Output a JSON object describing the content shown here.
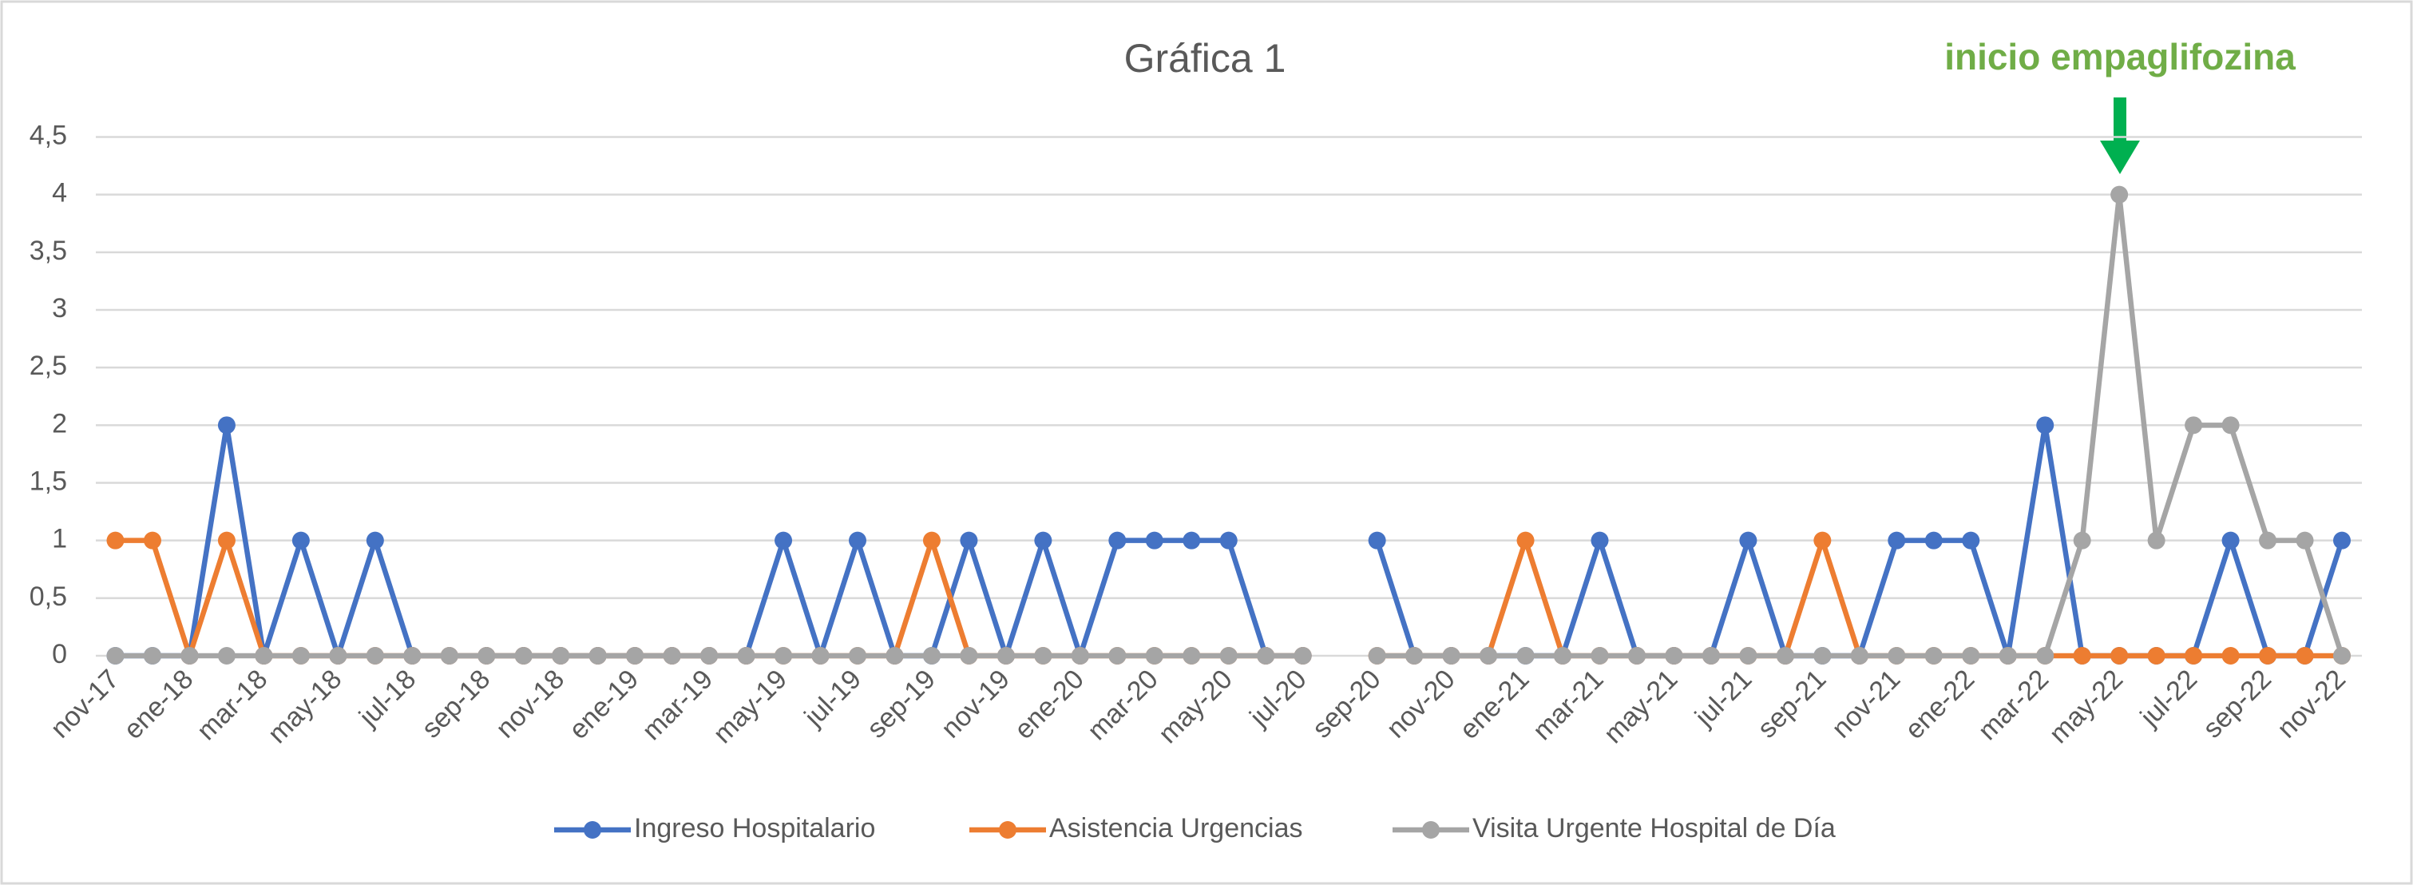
{
  "chart_data": {
    "type": "line",
    "title": "Gráfica 1",
    "annotation": "inicio empaglifozina",
    "categories": [
      "nov-17",
      null,
      "ene-18",
      null,
      "mar-18",
      null,
      "may-18",
      null,
      "jul-18",
      null,
      "sep-18",
      null,
      "nov-18",
      null,
      "ene-19",
      null,
      "mar-19",
      null,
      "may-19",
      null,
      "jul-19",
      null,
      "sep-19",
      null,
      "nov-19",
      null,
      "ene-20",
      null,
      "mar-20",
      null,
      "may-20",
      null,
      "jul-20",
      null,
      "sep-20",
      null,
      "nov-20",
      null,
      "ene-21",
      null,
      "mar-21",
      null,
      "may-21",
      null,
      "jul-21",
      null,
      "sep-21",
      null,
      "nov-21",
      null,
      "ene-22",
      null,
      "mar-22",
      null,
      "may-22",
      null,
      "jul-22",
      null,
      "sep-22",
      null,
      "nov-22"
    ],
    "series": [
      {
        "name": "Ingreso Hospitalario",
        "color": "#4472c4",
        "values": [
          0,
          0,
          0,
          2,
          0,
          1,
          0,
          1,
          0,
          0,
          0,
          0,
          0,
          0,
          0,
          0,
          0,
          0,
          1,
          0,
          1,
          0,
          0,
          1,
          0,
          1,
          0,
          1,
          1,
          1,
          1,
          0,
          0,
          null,
          1,
          0,
          0,
          0,
          0,
          0,
          1,
          0,
          0,
          0,
          1,
          0,
          0,
          0,
          1,
          1,
          1,
          0,
          2,
          0,
          0,
          0,
          0,
          1,
          0,
          0,
          1
        ]
      },
      {
        "name": "Asistencia Urgencias",
        "color": "#ed7d31",
        "values": [
          1,
          1,
          0,
          1,
          0,
          0,
          0,
          0,
          0,
          0,
          0,
          0,
          0,
          0,
          0,
          0,
          0,
          0,
          0,
          0,
          0,
          0,
          1,
          0,
          0,
          0,
          0,
          0,
          0,
          0,
          0,
          0,
          0,
          null,
          0,
          0,
          0,
          0,
          1,
          0,
          0,
          0,
          0,
          0,
          0,
          0,
          1,
          0,
          0,
          0,
          0,
          0,
          0,
          0,
          0,
          0,
          0,
          0,
          0,
          0,
          0
        ]
      },
      {
        "name": "Visita Urgente Hospital de Día",
        "color": "#a5a5a5",
        "values": [
          0,
          0,
          0,
          0,
          0,
          0,
          0,
          0,
          0,
          0,
          0,
          0,
          0,
          0,
          0,
          0,
          0,
          0,
          0,
          0,
          0,
          0,
          0,
          0,
          0,
          0,
          0,
          0,
          0,
          0,
          0,
          0,
          0,
          null,
          0,
          0,
          0,
          0,
          0,
          0,
          0,
          0,
          0,
          0,
          0,
          0,
          0,
          0,
          0,
          0,
          0,
          0,
          0,
          1,
          4,
          1,
          2,
          2,
          1,
          1,
          0
        ]
      }
    ],
    "ylim": [
      0,
      4.5
    ],
    "yticks": [
      0,
      {
        "value": 0.5,
        "label": "0,5"
      },
      1,
      {
        "value": 1.5,
        "label": "1,5"
      },
      2,
      {
        "value": 2.5,
        "label": "2,5"
      },
      3,
      {
        "value": 3.5,
        "label": "3,5"
      },
      4,
      {
        "value": 4.5,
        "label": "4,5"
      }
    ],
    "grid": true,
    "legend": "bottom"
  }
}
